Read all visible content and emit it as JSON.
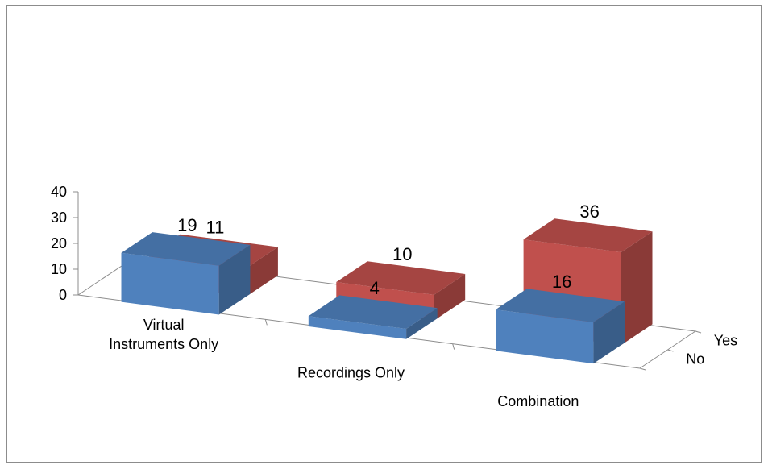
{
  "chart_data": {
    "type": "bar",
    "subtype": "3d-column",
    "title": "",
    "xlabel": "",
    "ylabel": "",
    "categories": [
      "Virtual\nInstruments Only",
      "Recordings Only",
      "Combination"
    ],
    "series": [
      {
        "name": "No",
        "values": [
          19,
          4,
          16
        ],
        "color": "#4f81bd"
      },
      {
        "name": "Yes",
        "values": [
          11,
          10,
          36
        ],
        "color": "#c0504d"
      }
    ],
    "y_ticks": [
      "0",
      "10",
      "20",
      "30",
      "40"
    ],
    "ylim": [
      0,
      40
    ],
    "data_labels": true,
    "grid": false,
    "legend": "none"
  }
}
